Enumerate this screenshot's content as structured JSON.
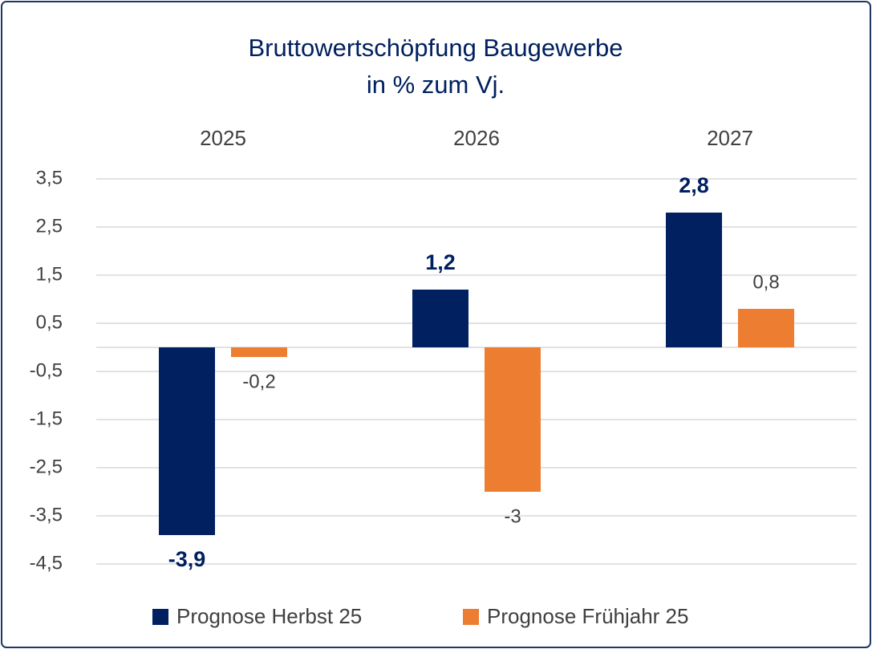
{
  "chart_data": {
    "type": "bar",
    "title": "Bruttowertschöpfung Baugewerbe",
    "subtitle": "in % zum Vj.",
    "categories": [
      "2025",
      "2026",
      "2027"
    ],
    "series": [
      {
        "name": "Prognose Herbst 25",
        "color": "#002060",
        "values": [
          -3.9,
          1.2,
          2.8
        ],
        "value_labels": [
          "-3,9",
          "1,2",
          "2,8"
        ]
      },
      {
        "name": "Prognose Frühjahr 25",
        "color": "#ed7d31",
        "values": [
          -0.2,
          -3,
          0.8
        ],
        "value_labels": [
          "-0,2",
          "-3",
          "0,8"
        ]
      }
    ],
    "ylim": [
      -4.5,
      3.5
    ],
    "yticks": [
      {
        "value": 3.5,
        "label": "3,5"
      },
      {
        "value": 2.5,
        "label": "2,5"
      },
      {
        "value": 1.5,
        "label": "1,5"
      },
      {
        "value": 0.5,
        "label": "0,5"
      },
      {
        "value": -0.5,
        "label": "-0,5"
      },
      {
        "value": -1.5,
        "label": "-1,5"
      },
      {
        "value": -2.5,
        "label": "-2,5"
      },
      {
        "value": -3.5,
        "label": "-3,5"
      },
      {
        "value": -4.5,
        "label": "-4,5"
      }
    ],
    "grid": true,
    "legend": "bottom"
  }
}
